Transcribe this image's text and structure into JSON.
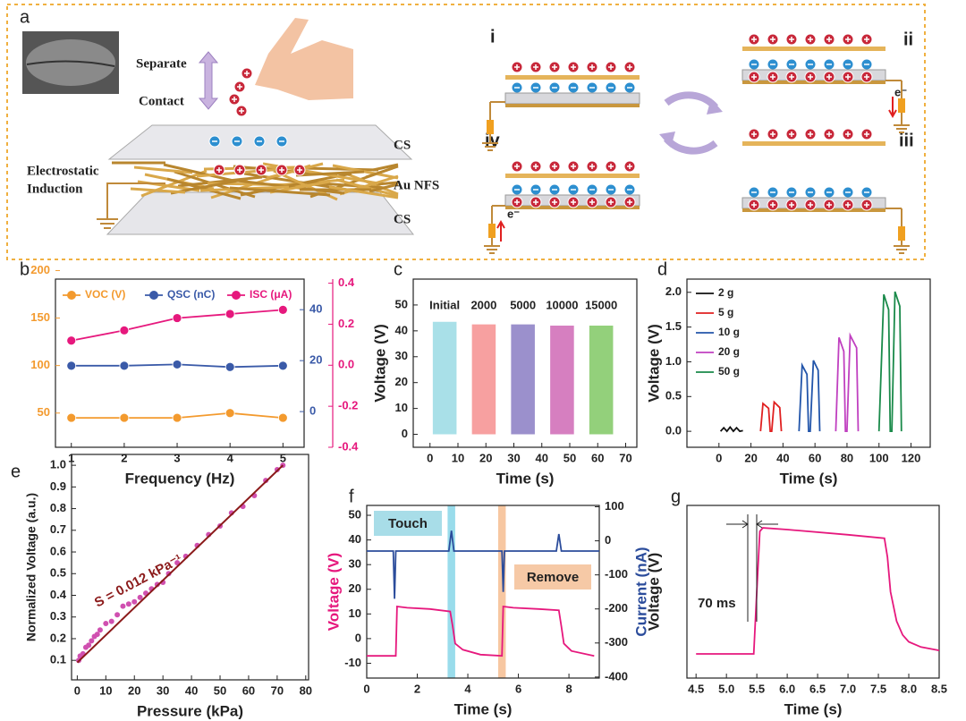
{
  "diagram": {
    "panel": "a",
    "separate": "Separate",
    "contact": "Contact",
    "layer_top": "CS",
    "layer_mid": "Au NFS",
    "layer_bottom": "CS",
    "induction": [
      "Electrostatic",
      "Induction"
    ],
    "states": [
      "i",
      "ii",
      "iii",
      "iv"
    ],
    "electron": "e⁻"
  },
  "chart_data": [
    {
      "type": "line",
      "panel": "b",
      "xlabel": "Frequency (Hz)",
      "colored_axes": true,
      "legend": "top",
      "x": [
        1,
        2,
        3,
        4,
        5
      ],
      "xlim": [
        0.7,
        5.4
      ],
      "xticks": [
        1,
        2,
        3,
        4,
        5
      ],
      "ylim": [
        14,
        191
      ],
      "yticks": [
        50,
        100,
        150,
        200
      ],
      "y2lim": [
        -14,
        52
      ],
      "y2ticks": [
        0,
        20,
        40
      ],
      "y3lim": [
        -0.4,
        0.42
      ],
      "y3ticks": [
        -0.4,
        -0.2,
        {
          "value": 0,
          "label": "0.0"
        },
        0.2,
        0.4
      ],
      "series": [
        {
          "name": "VOC (V)",
          "color": "#f39a2e",
          "axis": "y",
          "markers": true,
          "values": [
            45,
            45,
            45,
            50,
            45
          ]
        },
        {
          "name": "QSC (nC)",
          "color": "#3a5aa8",
          "axis": "y2",
          "markers": true,
          "values": [
            18,
            18,
            18.5,
            17.5,
            18
          ]
        },
        {
          "name": "ISC (μA)",
          "color": "#e6187d",
          "axis": "y3",
          "markers": true,
          "values": [
            0.12,
            0.17,
            0.23,
            0.25,
            0.27
          ]
        }
      ]
    },
    {
      "type": "band",
      "panel": "c",
      "xlabel": "Time (s)",
      "ylabel": "Voltage (V)",
      "xlim": [
        -6,
        74
      ],
      "xticks": [
        0,
        10,
        20,
        30,
        40,
        50,
        60,
        70
      ],
      "ylim": [
        -5,
        60
      ],
      "yticks": [
        0,
        10,
        20,
        30,
        40,
        50
      ],
      "series": [
        {
          "name": "Initial",
          "color": "#a9e0e8",
          "x": [
            1,
            9.5
          ],
          "values": [
            43.5,
            43.5
          ]
        },
        {
          "name": "2000",
          "color": "#f7a0a0",
          "x": [
            15,
            23.5
          ],
          "values": [
            42.5,
            42.5
          ]
        },
        {
          "name": "5000",
          "color": "#9b90cc",
          "x": [
            29,
            37.5
          ],
          "values": [
            42.5,
            42.5
          ]
        },
        {
          "name": "10000",
          "color": "#d67fc0",
          "x": [
            43,
            51.5
          ],
          "values": [
            42,
            42
          ]
        },
        {
          "name": "15000",
          "color": "#93d07b",
          "x": [
            57,
            65.5
          ],
          "values": [
            42,
            42
          ]
        }
      ]
    },
    {
      "type": "line",
      "panel": "d",
      "xlabel": "Time (s)",
      "ylabel": "Voltage (V)",
      "legend": "upper left",
      "xlim": [
        -20,
        132
      ],
      "xticks": [
        0,
        20,
        40,
        60,
        80,
        100,
        120
      ],
      "ylim": [
        -0.23,
        2.19
      ],
      "yticks": [
        {
          "value": 0,
          "label": "0.0"
        },
        0.5,
        {
          "value": 1,
          "label": "1.0"
        },
        1.5,
        {
          "value": 2,
          "label": "2.0"
        }
      ],
      "series": [
        {
          "name": "2 g",
          "color": "#111111",
          "x": [
            1,
            3,
            5,
            7,
            9,
            11,
            13,
            15
          ],
          "values": [
            0,
            0.05,
            0,
            0.06,
            0,
            0.05,
            0,
            0.01
          ]
        },
        {
          "name": "5 g",
          "color": "#e02020",
          "x": [
            26,
            27.5,
            31,
            32,
            33,
            34.5,
            38,
            39
          ],
          "values": [
            0,
            0.4,
            0.33,
            0,
            0,
            0.42,
            0.34,
            0
          ]
        },
        {
          "name": "10 g",
          "color": "#2255aa",
          "x": [
            50,
            52,
            55,
            56,
            57,
            59,
            62,
            63
          ],
          "values": [
            0,
            0.95,
            0.82,
            0,
            0,
            1.02,
            0.88,
            0
          ]
        },
        {
          "name": "20 g",
          "color": "#c040c0",
          "x": [
            73,
            75,
            78,
            79,
            80,
            82,
            86,
            87
          ],
          "values": [
            0,
            1.35,
            1.15,
            0,
            0,
            1.38,
            1.2,
            0
          ]
        },
        {
          "name": "50 g",
          "color": "#1a8a4a",
          "x": [
            100,
            103,
            106,
            107,
            108,
            110,
            113,
            114
          ],
          "values": [
            0,
            1.97,
            1.75,
            0,
            0,
            2.01,
            1.8,
            0
          ]
        }
      ]
    },
    {
      "type": "scatter",
      "panel": "e",
      "xlabel": "Pressure (kPa)",
      "ylabel": "Normalized Voltage (a.u.)",
      "annotations": [
        "S = 0.012 kPa⁻¹"
      ],
      "xlim": [
        -2,
        81
      ],
      "xticks": [
        0,
        10,
        20,
        30,
        40,
        50,
        60,
        70,
        80
      ],
      "ylim": [
        0.01,
        1.05
      ],
      "yticks": [
        0.1,
        0.2,
        0.3,
        0.4,
        0.5,
        0.6,
        0.7,
        0.8,
        0.9,
        {
          "value": 1,
          "label": "1.0"
        }
      ],
      "points": {
        "color": "#d050b0",
        "x": [
          0.5,
          1,
          2,
          3,
          4,
          5,
          6,
          7,
          8,
          10,
          12,
          14,
          16,
          18,
          20,
          22,
          24,
          26,
          28,
          30,
          32,
          35,
          38,
          42,
          46,
          50,
          54,
          58,
          62,
          66,
          70,
          72
        ],
        "values": [
          0.1,
          0.12,
          0.13,
          0.16,
          0.17,
          0.19,
          0.21,
          0.22,
          0.24,
          0.27,
          0.28,
          0.31,
          0.35,
          0.36,
          0.37,
          0.39,
          0.41,
          0.43,
          0.45,
          0.46,
          0.5,
          0.55,
          0.58,
          0.63,
          0.68,
          0.72,
          0.78,
          0.81,
          0.86,
          0.93,
          0.98,
          1.0
        ]
      },
      "fit": {
        "color": "#8b1a1a",
        "x": [
          0,
          72
        ],
        "values": [
          0.09,
          1.0
        ]
      }
    },
    {
      "type": "line",
      "panel": "f",
      "xlabel": "Time (s)",
      "ylabel": "Voltage (V)",
      "y2label": "Current (nA)",
      "annotations": [
        "Touch",
        "Remove"
      ],
      "xlim": [
        0,
        9.2
      ],
      "xticks": [
        0,
        2,
        4,
        6,
        8
      ],
      "ylim": [
        -16,
        54
      ],
      "yticks": [
        -10,
        0,
        10,
        20,
        30,
        40,
        50
      ],
      "y2lim": [
        -403,
        104
      ],
      "y2ticks": [
        -400,
        -300,
        -200,
        -100,
        0,
        100
      ],
      "highlights": [
        {
          "x": [
            3.2,
            3.5
          ],
          "color": "#7fd3e6"
        },
        {
          "x": [
            5.2,
            5.5
          ],
          "color": "#f5b98a"
        }
      ],
      "series": [
        {
          "color": "#e6187d",
          "axis": "y",
          "x": [
            0,
            1.15,
            1.2,
            1.6,
            2.5,
            3.3,
            3.4,
            3.5,
            3.8,
            4.5,
            5.35,
            5.4,
            5.8,
            6.8,
            7.6,
            7.7,
            7.8,
            8.1,
            9.0
          ],
          "values": [
            -7,
            -7,
            13,
            12.5,
            12,
            11,
            5,
            -2,
            -4.5,
            -6.5,
            -7,
            13,
            12.5,
            12,
            11.5,
            5,
            -2,
            -5,
            -7
          ]
        },
        {
          "color": "#2b4c9b",
          "axis": "y2",
          "x": [
            0,
            1.05,
            1.1,
            1.15,
            3.25,
            3.35,
            3.45,
            5.35,
            5.4,
            5.45,
            7.5,
            7.6,
            7.7,
            9.2
          ],
          "values": [
            -30,
            -30,
            -170,
            -30,
            -30,
            30,
            -30,
            -30,
            -150,
            -30,
            -30,
            20,
            -30,
            -30
          ]
        }
      ]
    },
    {
      "type": "line",
      "panel": "g",
      "xlabel": "Time (s)",
      "ylabel": "Voltage (V)",
      "annotations": [
        "70 ms"
      ],
      "xlim": [
        4.35,
        8.5
      ],
      "xticks": [
        4.5,
        {
          "value": 5,
          "label": "5.0"
        },
        5.5,
        {
          "value": 6,
          "label": "6.0"
        },
        6.5,
        {
          "value": 7,
          "label": "7.0"
        },
        7.5,
        {
          "value": 8,
          "label": "8.0"
        },
        8.5
      ],
      "ylim": [
        0,
        1
      ],
      "series": [
        {
          "color": "#e6187d",
          "x": [
            4.5,
            5.45,
            5.5,
            5.55,
            5.6,
            6,
            7,
            7.6,
            7.65,
            7.7,
            7.8,
            7.9,
            8.0,
            8.2,
            8.5
          ],
          "values": [
            0.14,
            0.14,
            0.5,
            0.85,
            0.87,
            0.86,
            0.83,
            0.81,
            0.7,
            0.5,
            0.33,
            0.25,
            0.21,
            0.18,
            0.16
          ]
        }
      ]
    }
  ]
}
